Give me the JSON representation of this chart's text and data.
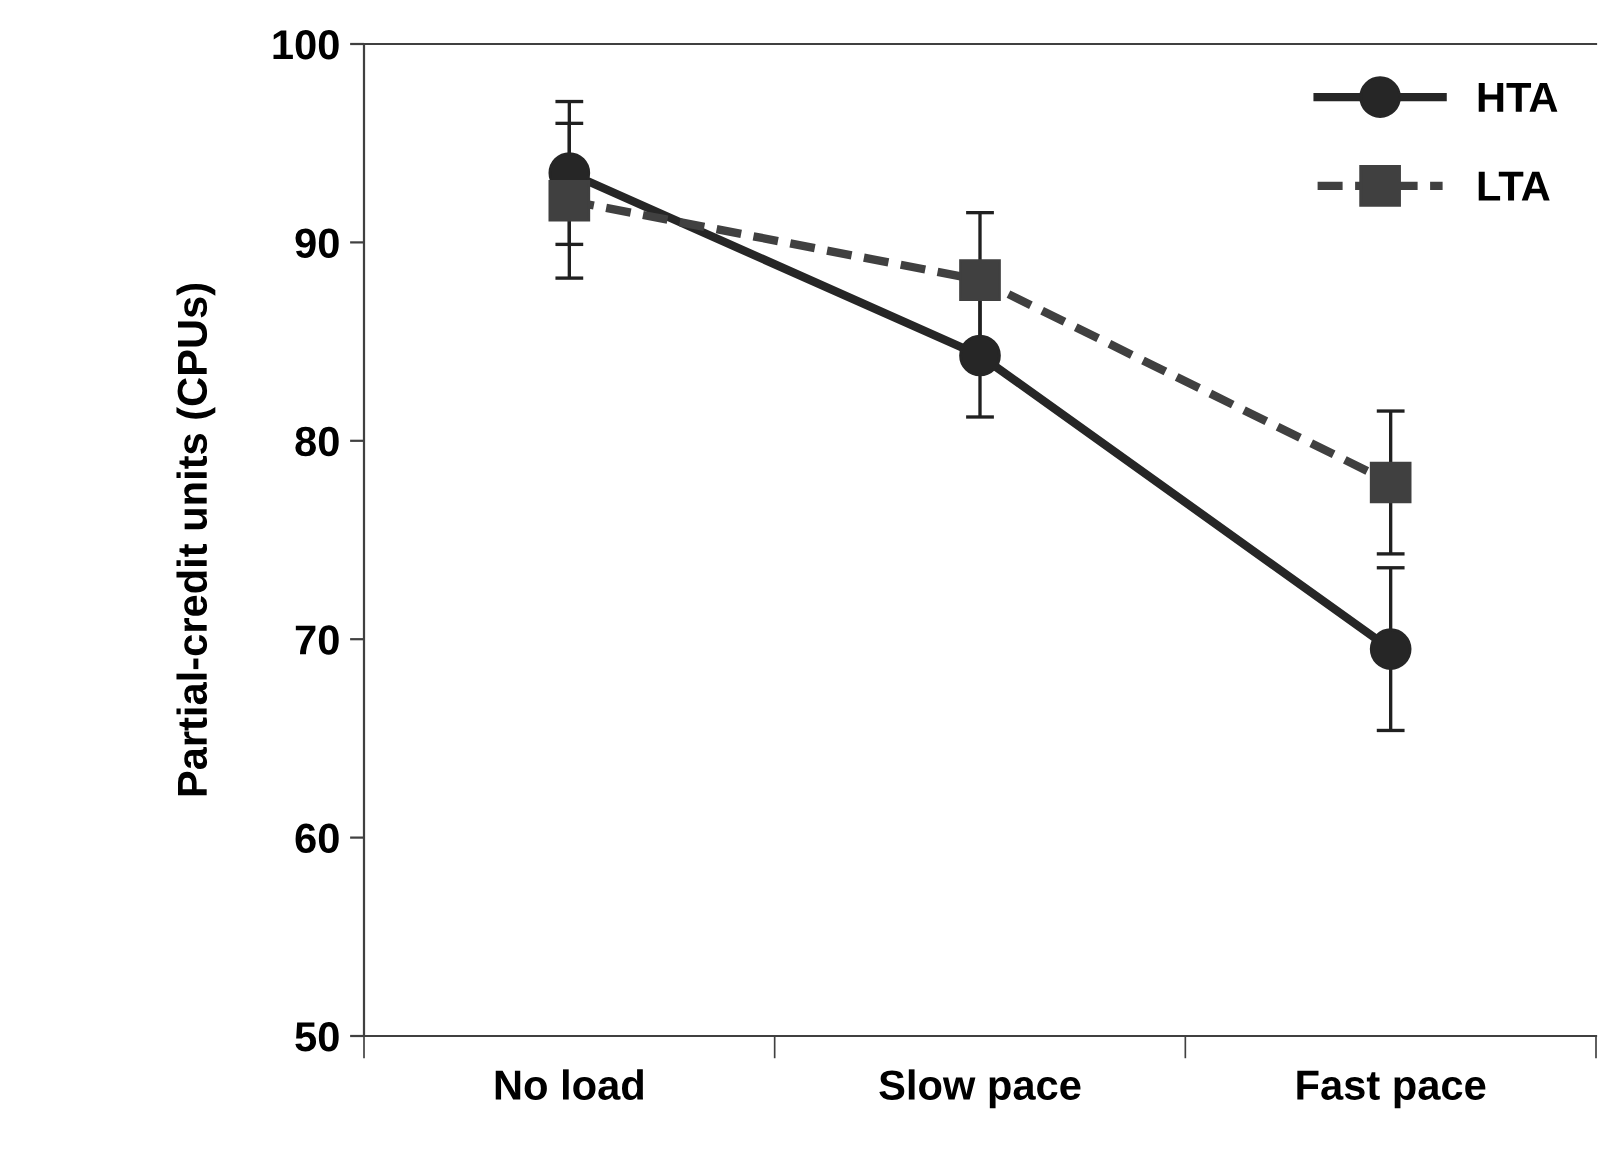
{
  "chart_data": {
    "type": "line",
    "ylabel": "Partial-credit units (CPUs)",
    "categories": [
      "No load",
      "Slow pace",
      "Fast pace"
    ],
    "series": [
      {
        "name": "HTA",
        "color": "#262626",
        "marker": "circle",
        "line_style": "solid",
        "values": [
          93.5,
          84.3,
          69.5
        ],
        "errors": [
          3.6,
          3.1,
          4.1
        ]
      },
      {
        "name": "LTA",
        "color": "#404040",
        "marker": "square",
        "line_style": "dashed",
        "values": [
          92.1,
          88.1,
          77.9
        ],
        "errors": [
          3.9,
          3.4,
          3.6
        ]
      }
    ],
    "ylim": [
      50,
      100
    ],
    "yticks": [
      50,
      60,
      70,
      80,
      90,
      100
    ],
    "grid": false,
    "legend": "top right"
  }
}
